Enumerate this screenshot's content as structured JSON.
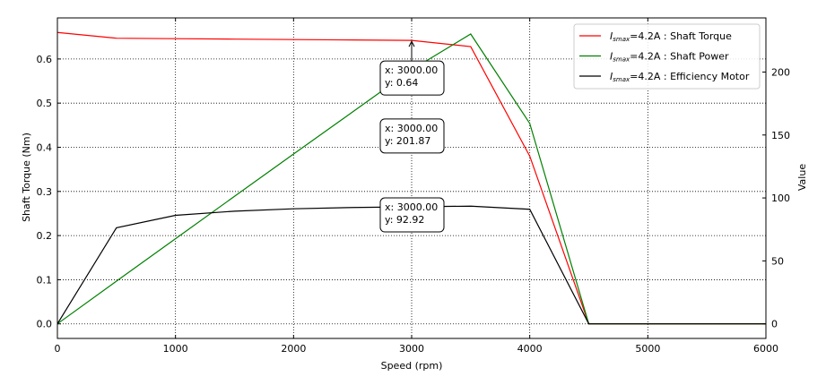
{
  "chart_data": {
    "type": "line",
    "xlabel": "Speed  (rpm)",
    "ylabel_left": "Shaft Torque  (Nm)",
    "ylabel_right": "Value",
    "xlim": [
      0,
      6000
    ],
    "ylim_left": [
      -0.033,
      0.693
    ],
    "ylim_right": [
      -11.6,
      243
    ],
    "xticks": [
      0,
      1000,
      2000,
      3000,
      4000,
      5000,
      6000
    ],
    "yticks_left": [
      "0.0",
      "0.1",
      "0.2",
      "0.3",
      "0.4",
      "0.5",
      "0.6"
    ],
    "yticks_right": [
      0,
      50,
      100,
      150,
      200
    ],
    "grid": true,
    "legend_position": "top-right",
    "x": [
      0,
      500,
      1000,
      1500,
      2000,
      2500,
      3000,
      3500,
      4000,
      4500,
      5000,
      5500,
      6000
    ],
    "series": [
      {
        "name": "Shaft Torque",
        "legend_prefix": "I",
        "legend_sub": "smax",
        "legend_value": "=4.2A : ",
        "axis": "left",
        "color": "#ff0000",
        "values": [
          0.66,
          0.647,
          0.646,
          0.645,
          0.644,
          0.643,
          0.642,
          0.628,
          0.38,
          0,
          0,
          0,
          0
        ]
      },
      {
        "name": "Shaft Power",
        "legend_prefix": "I",
        "legend_sub": "smax",
        "legend_value": "=4.2A : ",
        "axis": "right",
        "color": "#008000",
        "values": [
          0,
          33.9,
          67.6,
          101.3,
          134.9,
          168.3,
          201.87,
          230.2,
          159.2,
          0,
          0,
          0,
          0
        ]
      },
      {
        "name": "Efficiency Motor",
        "legend_prefix": "I",
        "legend_sub": "smax",
        "legend_value": "=4.2A : ",
        "axis": "right",
        "color": "#000000",
        "values": [
          0,
          76.3,
          86.2,
          89.5,
          91.4,
          92.4,
          92.92,
          93.5,
          91.0,
          0,
          0,
          0,
          0
        ]
      }
    ],
    "annotations": [
      {
        "series": 0,
        "x": 3000,
        "y": 0.642,
        "line1": "x: 3000.00",
        "line2": "y: 0.64"
      },
      {
        "series": 1,
        "x": 3000,
        "y": 201.87,
        "line1": "x: 3000.00",
        "line2": "y: 201.87"
      },
      {
        "series": 2,
        "x": 3000,
        "y": 92.92,
        "line1": "x: 3000.00",
        "line2": "y: 92.92"
      }
    ]
  }
}
